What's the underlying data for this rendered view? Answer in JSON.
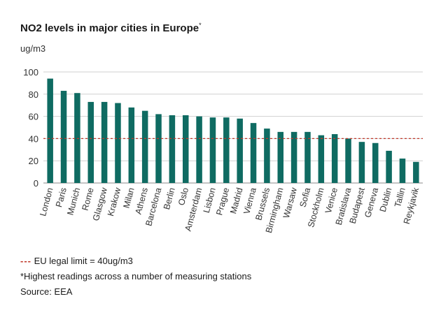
{
  "title": "NO2 levels in major cities in Europe",
  "title_mark": "*",
  "unit": "ug/m3",
  "legend": {
    "marker": "---",
    "label": "EU legal limit = 40ug/m3"
  },
  "footnote": "*Highest readings across a number of measuring stations",
  "source": "Source: EEA",
  "colors": {
    "bar": "#0f6b62",
    "limit_line": "#c0392b",
    "grid": "#d0d0d0",
    "axis_text": "#333333"
  },
  "chart_data": {
    "type": "bar",
    "title": "NO2 levels in major cities in Europe",
    "ylabel": "ug/m3",
    "xlabel": "",
    "ylim": [
      0,
      100
    ],
    "yticks": [
      0,
      20,
      40,
      60,
      80,
      100
    ],
    "grid": true,
    "reference_line": {
      "value": 40,
      "label": "EU legal limit = 40ug/m3",
      "style": "dashed"
    },
    "categories": [
      "London",
      "Paris",
      "Munich",
      "Rome",
      "Glasgow",
      "Krakow",
      "Milan",
      "Athens",
      "Barcelona",
      "Berlin",
      "Oslo",
      "Amsterdam",
      "Lisbon",
      "Prague",
      "Madrid",
      "Vienna",
      "Brussels",
      "Birmingham",
      "Warsaw",
      "Sofia",
      "Stockholm",
      "Venice",
      "Bratislava",
      "Budapest",
      "Geneva",
      "Dublin",
      "Tallin",
      "Reykjavik"
    ],
    "values": [
      94,
      83,
      81,
      73,
      73,
      72,
      68,
      65,
      62,
      61,
      61,
      60,
      59,
      59,
      58,
      54,
      49,
      46,
      46,
      46,
      43,
      44,
      40,
      37,
      36,
      29,
      22,
      19
    ]
  }
}
